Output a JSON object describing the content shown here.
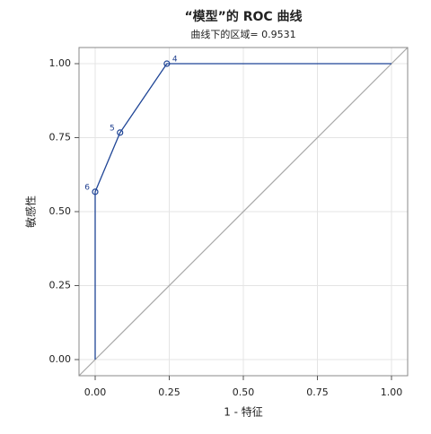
{
  "chart_data": {
    "type": "line",
    "title": "“模型”的 ROC 曲线",
    "subtitle": "曲线下的区域= 0.9531",
    "x_label": "1 - 特征",
    "y_label": "敏感性",
    "x": [
      0,
      0,
      0.084,
      0.242,
      1
    ],
    "series": [
      {
        "name": "ROC",
        "color": "#1f4596",
        "values": [
          0,
          0.567,
          0.767,
          1,
          1
        ],
        "point_labels": [
          null,
          "6",
          "5",
          "4",
          null
        ]
      }
    ],
    "xlim": [
      -0.0545,
      1.0545
    ],
    "ylim": [
      -0.0545,
      1.0545
    ],
    "xticks": [
      {
        "value": 0,
        "label": "0.00"
      },
      {
        "value": 0.25,
        "label": "0.25"
      },
      {
        "value": 0.5,
        "label": "0.50"
      },
      {
        "value": 0.75,
        "label": "0.75"
      },
      {
        "value": 1,
        "label": "1.00"
      }
    ],
    "yticks": [
      {
        "value": 0,
        "label": "0.00"
      },
      {
        "value": 0.25,
        "label": "0.25"
      },
      {
        "value": 0.5,
        "label": "0.50"
      },
      {
        "value": 0.75,
        "label": "0.75"
      },
      {
        "value": 1,
        "label": "1.00"
      }
    ],
    "grid": true
  }
}
